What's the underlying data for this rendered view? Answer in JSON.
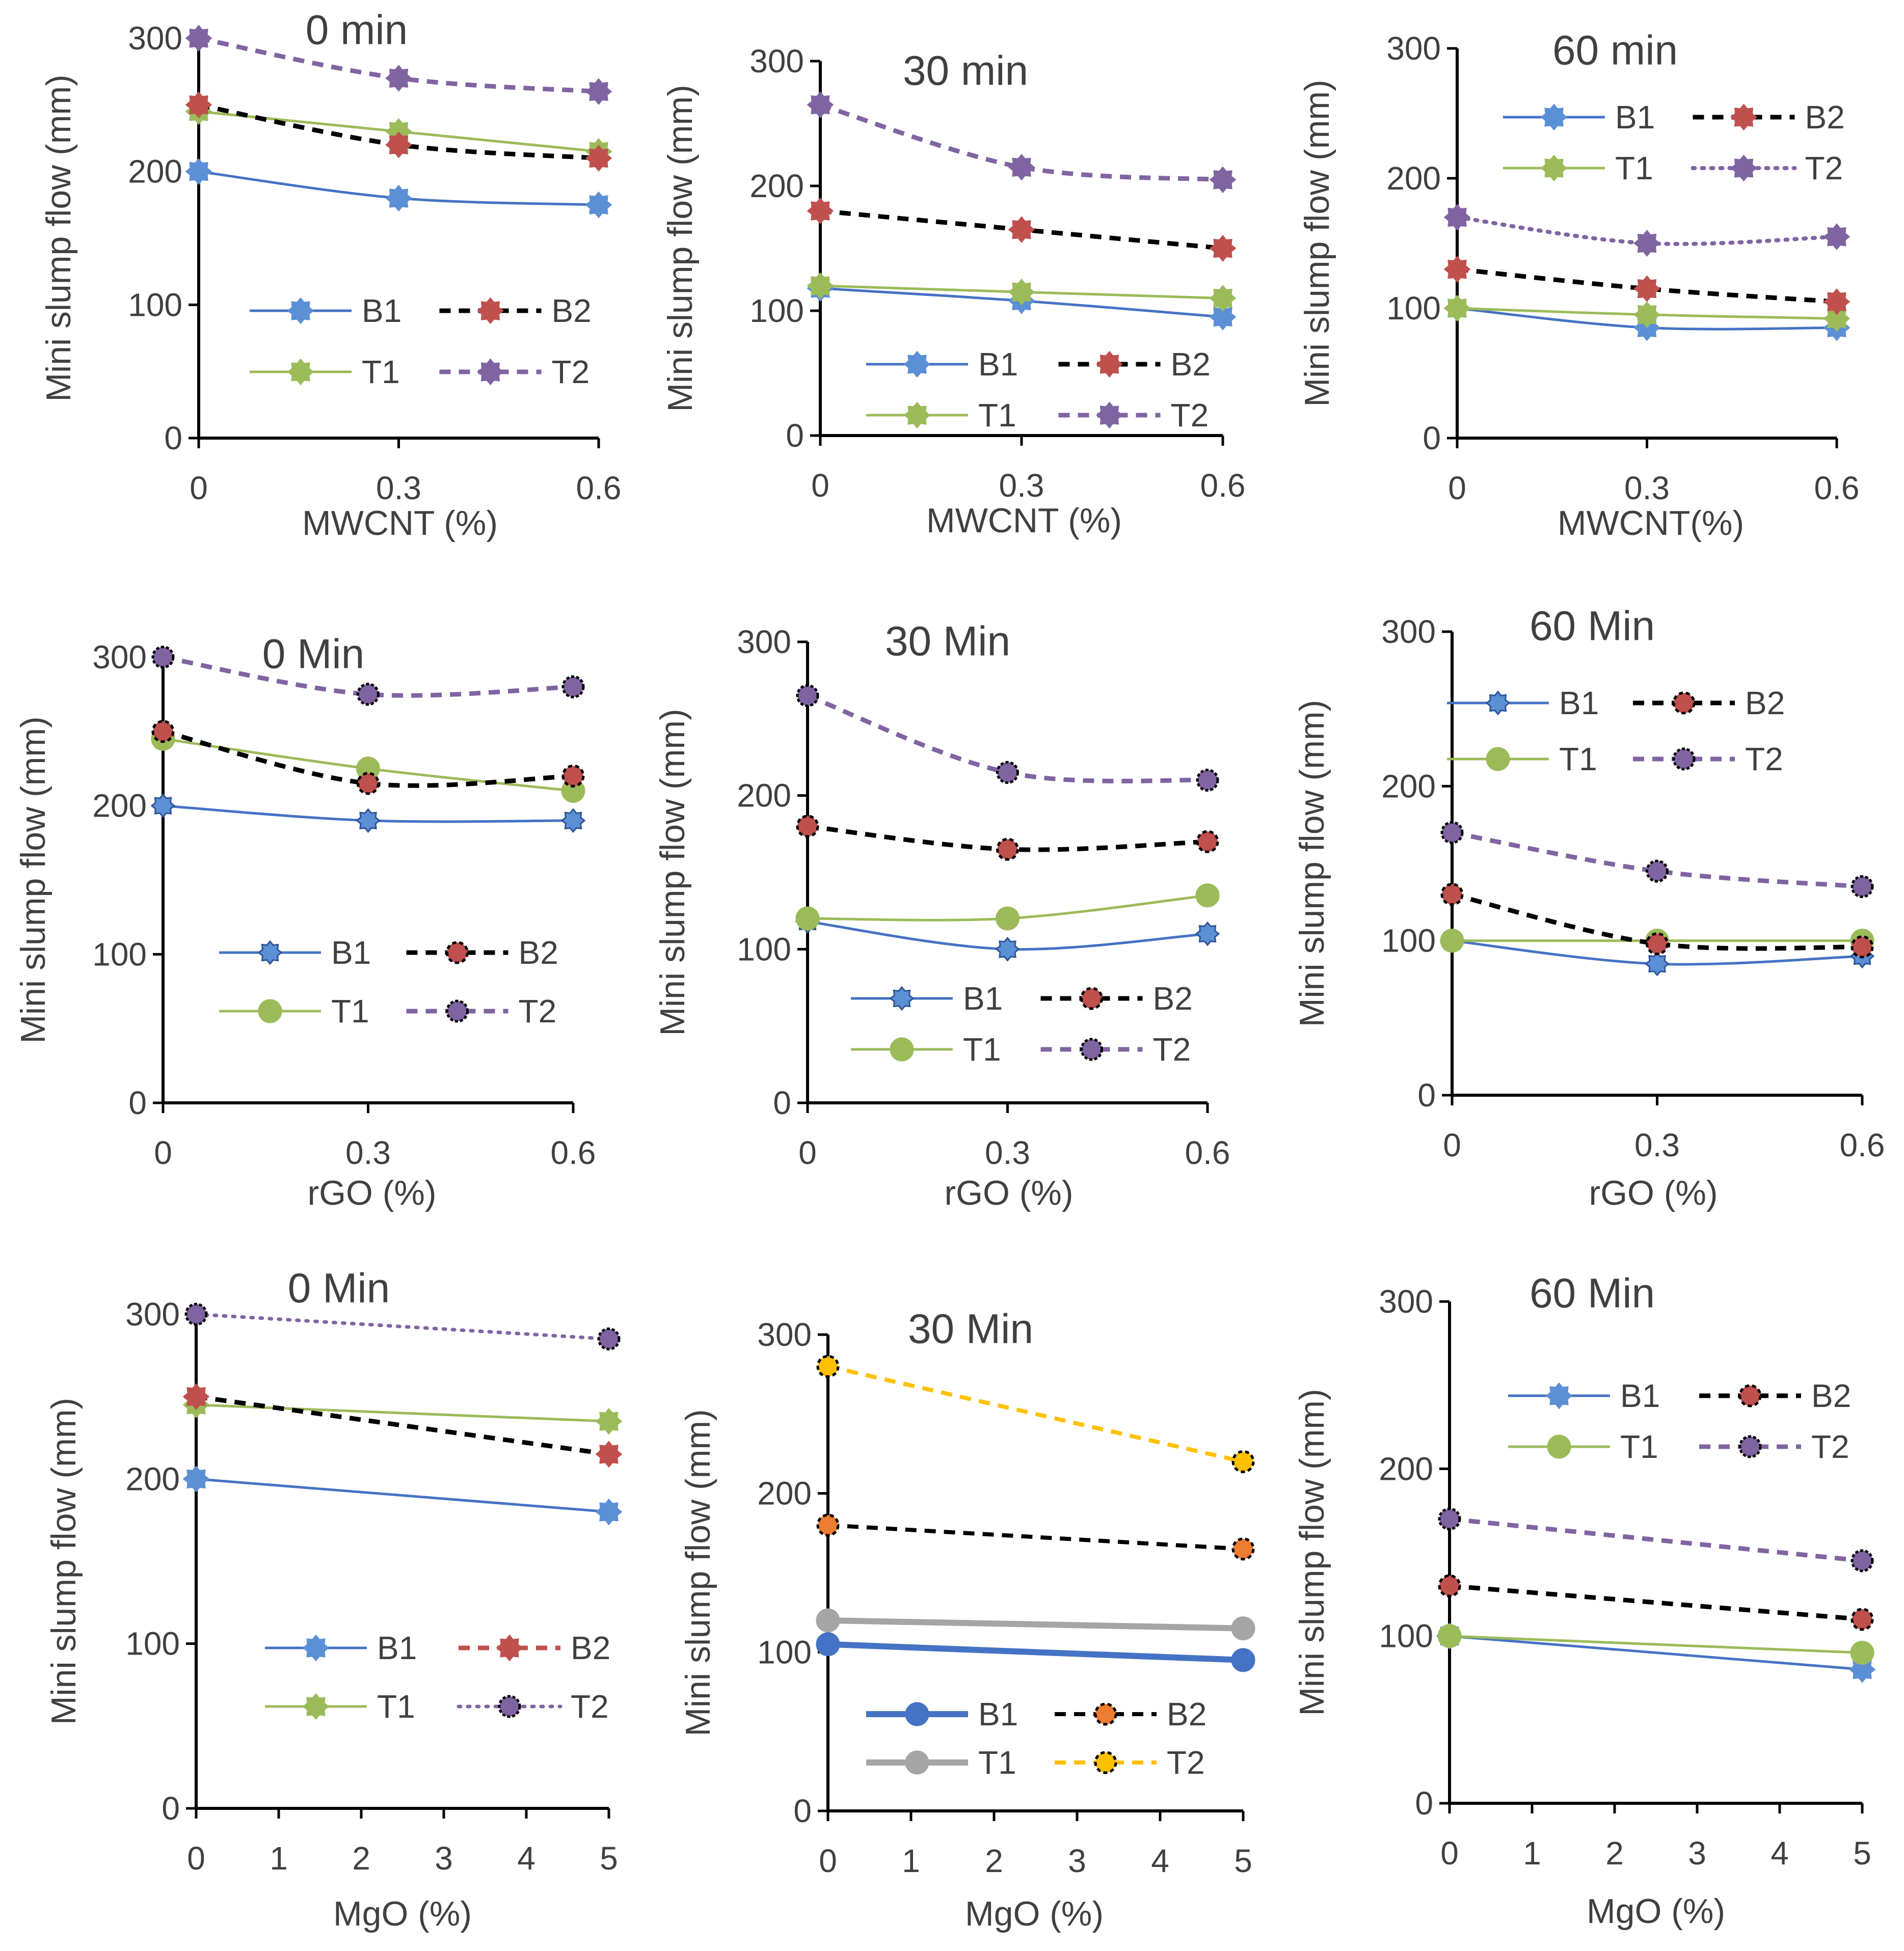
{
  "colors": {
    "B1": "#4472c4",
    "B1_marker": "#5b8fd6",
    "B2": "#000000",
    "B2_marker": "#c0504d",
    "T1": "#9bbb59",
    "T2": "#8064a2",
    "gray": "#a5a5a5",
    "orange": "#ed7d31",
    "gold": "#ffc000",
    "axis": "#000000",
    "text": "#404040"
  },
  "chart_data": [
    {
      "id": "mwcnt-0min",
      "type": "line",
      "title": "0 min",
      "xlabel": "MWCNT (%)",
      "ylabel": "Mini slump flow (mm)",
      "x_ticks": [
        "0",
        "0.3",
        "0.6"
      ],
      "x": [
        0,
        0.3,
        0.6
      ],
      "xlim": [
        0,
        0.6
      ],
      "y_ticks": [
        "0",
        "100",
        "200",
        "300"
      ],
      "ylim": [
        0,
        300
      ],
      "legend_position": "center-right",
      "series": [
        {
          "name": "B1",
          "values": [
            200,
            180,
            175
          ]
        },
        {
          "name": "B2",
          "values": [
            250,
            220,
            210
          ]
        },
        {
          "name": "T1",
          "values": [
            245,
            230,
            215
          ]
        },
        {
          "name": "T2",
          "values": [
            300,
            270,
            260
          ]
        }
      ]
    },
    {
      "id": "mwcnt-30min",
      "type": "line",
      "title": "30 min",
      "xlabel": "MWCNT (%)",
      "ylabel": "Mini slump flow (mm)",
      "x_ticks": [
        "0",
        "0.3",
        "0.6"
      ],
      "x": [
        0,
        0.3,
        0.6
      ],
      "xlim": [
        0,
        0.6
      ],
      "y_ticks": [
        "0",
        "100",
        "200",
        "300"
      ],
      "ylim": [
        0,
        300
      ],
      "legend_position": "lower-right",
      "series": [
        {
          "name": "B1",
          "values": [
            118,
            108,
            95
          ]
        },
        {
          "name": "B2",
          "values": [
            180,
            165,
            150
          ]
        },
        {
          "name": "T1",
          "values": [
            120,
            115,
            110
          ]
        },
        {
          "name": "T2",
          "values": [
            265,
            215,
            205
          ]
        }
      ]
    },
    {
      "id": "mwcnt-60min",
      "type": "line",
      "title": "60 min",
      "xlabel": "MWCNT(%)",
      "ylabel": "Mini slump flow (mm)",
      "x_ticks": [
        "0",
        "0.3",
        "0.6"
      ],
      "x": [
        0,
        0.3,
        0.6
      ],
      "xlim": [
        0,
        0.6
      ],
      "y_ticks": [
        "0",
        "100",
        "200",
        "300"
      ],
      "ylim": [
        0,
        300
      ],
      "legend_position": "top-right",
      "series": [
        {
          "name": "B1",
          "values": [
            100,
            85,
            85
          ]
        },
        {
          "name": "B2",
          "values": [
            130,
            115,
            105
          ]
        },
        {
          "name": "T1",
          "values": [
            100,
            95,
            92
          ]
        },
        {
          "name": "T2",
          "values": [
            170,
            150,
            155
          ]
        }
      ]
    },
    {
      "id": "rgo-0min",
      "type": "line",
      "title": "0 Min",
      "xlabel": "rGO (%)",
      "ylabel": "Mini slump flow (mm)",
      "x_ticks": [
        "0",
        "0.3",
        "0.6"
      ],
      "x": [
        0,
        0.3,
        0.6
      ],
      "xlim": [
        0,
        0.6
      ],
      "y_ticks": [
        "0",
        "100",
        "200",
        "300"
      ],
      "ylim": [
        0,
        300
      ],
      "legend_position": "lower-right",
      "series": [
        {
          "name": "B1",
          "values": [
            200,
            190,
            190
          ]
        },
        {
          "name": "B2",
          "values": [
            250,
            215,
            220
          ]
        },
        {
          "name": "T1",
          "values": [
            245,
            225,
            210
          ]
        },
        {
          "name": "T2",
          "values": [
            300,
            275,
            280
          ]
        }
      ]
    },
    {
      "id": "rgo-30min",
      "type": "line",
      "title": "30 Min",
      "xlabel": "rGO (%)",
      "ylabel": "Mini slump flow (mm)",
      "x_ticks": [
        "0",
        "0.3",
        "0.6"
      ],
      "x": [
        0,
        0.3,
        0.6
      ],
      "xlim": [
        0,
        0.6
      ],
      "y_ticks": [
        "0",
        "100",
        "200",
        "300"
      ],
      "ylim": [
        0,
        300
      ],
      "legend_position": "lower-right",
      "series": [
        {
          "name": "B1",
          "values": [
            118,
            100,
            110
          ]
        },
        {
          "name": "B2",
          "values": [
            180,
            165,
            170
          ]
        },
        {
          "name": "T1",
          "values": [
            120,
            120,
            135
          ]
        },
        {
          "name": "T2",
          "values": [
            265,
            215,
            210
          ]
        }
      ]
    },
    {
      "id": "rgo-60min",
      "type": "line",
      "title": "60 Min",
      "xlabel": "rGO (%)",
      "ylabel": "Mini slump flow (mm)",
      "x_ticks": [
        "0",
        "0.3",
        "0.6"
      ],
      "x": [
        0,
        0.3,
        0.6
      ],
      "xlim": [
        0,
        0.6
      ],
      "y_ticks": [
        "0",
        "100",
        "200",
        "300"
      ],
      "ylim": [
        0,
        300
      ],
      "legend_position": "top-right",
      "series": [
        {
          "name": "B1",
          "values": [
            100,
            85,
            90
          ]
        },
        {
          "name": "B2",
          "values": [
            130,
            98,
            96
          ]
        },
        {
          "name": "T1",
          "values": [
            100,
            100,
            100
          ]
        },
        {
          "name": "T2",
          "values": [
            170,
            145,
            135
          ]
        }
      ]
    },
    {
      "id": "mgo-0min",
      "type": "line",
      "title": "0 Min",
      "xlabel": "MgO (%)",
      "ylabel": "Mini slump flow (mm)",
      "x_ticks": [
        "0",
        "1",
        "2",
        "3",
        "4",
        "5"
      ],
      "x": [
        0,
        5
      ],
      "xlim": [
        0,
        5
      ],
      "y_ticks": [
        "0",
        "100",
        "200",
        "300"
      ],
      "ylim": [
        0,
        300
      ],
      "legend_position": "lower-right",
      "series": [
        {
          "name": "B1",
          "values": [
            200,
            180
          ]
        },
        {
          "name": "B2",
          "values": [
            250,
            215
          ]
        },
        {
          "name": "T1",
          "values": [
            245,
            235
          ]
        },
        {
          "name": "T2",
          "values": [
            300,
            285
          ]
        }
      ]
    },
    {
      "id": "mgo-30min",
      "type": "line",
      "title": "30 Min",
      "xlabel": "MgO (%)",
      "ylabel": "Mini slump flow (mm)",
      "x_ticks": [
        "0",
        "1",
        "2",
        "3",
        "4",
        "5"
      ],
      "x": [
        0,
        5
      ],
      "xlim": [
        0,
        5
      ],
      "y_ticks": [
        "0",
        "100",
        "200",
        "300"
      ],
      "ylim": [
        0,
        300
      ],
      "legend_position": "bottom",
      "series": [
        {
          "name": "B1",
          "values": [
            105,
            95
          ]
        },
        {
          "name": "B2",
          "values": [
            180,
            165
          ]
        },
        {
          "name": "T1",
          "values": [
            120,
            115
          ]
        },
        {
          "name": "T2",
          "values": [
            280,
            220
          ]
        }
      ]
    },
    {
      "id": "mgo-60min",
      "type": "line",
      "title": "60 Min",
      "xlabel": "MgO (%)",
      "ylabel": "Mini slump flow (mm)",
      "x_ticks": [
        "0",
        "1",
        "2",
        "3",
        "4",
        "5"
      ],
      "x": [
        0,
        5
      ],
      "xlim": [
        0,
        5
      ],
      "y_ticks": [
        "0",
        "100",
        "200",
        "300"
      ],
      "ylim": [
        0,
        300
      ],
      "legend_position": "top-right",
      "series": [
        {
          "name": "B1",
          "values": [
            100,
            80
          ]
        },
        {
          "name": "B2",
          "values": [
            130,
            110
          ]
        },
        {
          "name": "T1",
          "values": [
            100,
            90
          ]
        },
        {
          "name": "T2",
          "values": [
            170,
            145
          ]
        }
      ]
    }
  ]
}
